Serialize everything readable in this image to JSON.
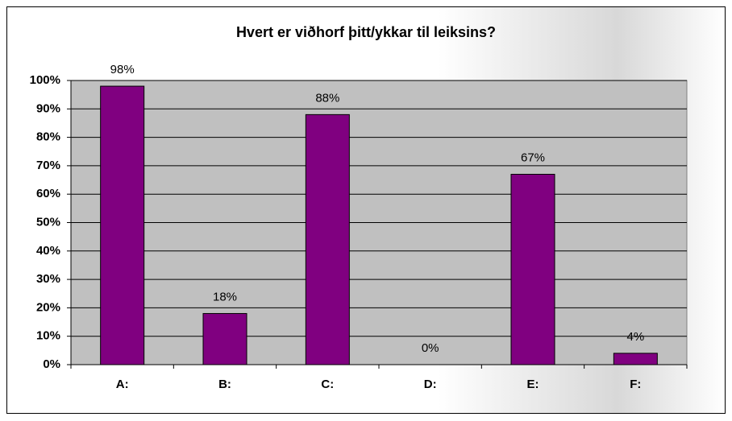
{
  "chart_data": {
    "type": "bar",
    "title": "Hvert er viðhorf þitt/ykkar til leiksins?",
    "categories": [
      "A:",
      "B:",
      "C:",
      "D:",
      "E:",
      "F:"
    ],
    "values": [
      98,
      18,
      88,
      0,
      67,
      4
    ],
    "value_labels": [
      "98%",
      "18%",
      "88%",
      "0%",
      "67%",
      "4%"
    ],
    "color": "#800080",
    "ylim": [
      0,
      100
    ],
    "yticks": [
      {
        "value": 0,
        "label": "0%"
      },
      {
        "value": 10,
        "label": "10%"
      },
      {
        "value": 20,
        "label": "20%"
      },
      {
        "value": 30,
        "label": "30%"
      },
      {
        "value": 40,
        "label": "40%"
      },
      {
        "value": 50,
        "label": "50%"
      },
      {
        "value": 60,
        "label": "60%"
      },
      {
        "value": 70,
        "label": "70%"
      },
      {
        "value": 80,
        "label": "80%"
      },
      {
        "value": 90,
        "label": "90%"
      },
      {
        "value": 100,
        "label": "100%"
      }
    ],
    "grid": true
  }
}
